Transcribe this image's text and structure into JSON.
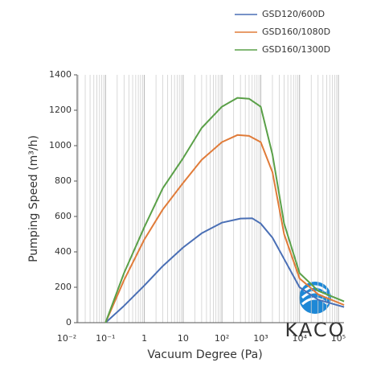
{
  "chart_data": {
    "type": "line",
    "xlabel": "Vacuum Degree (Pa)",
    "ylabel": "Pumping Speed (m³/h)",
    "log_x": true,
    "grid": true,
    "legend": "top-right",
    "xlim": [
      0.01,
      100000
    ],
    "ylim": [
      0,
      1400
    ],
    "xticks": [
      {
        "value": 0.01,
        "label": "10⁻²"
      },
      {
        "value": 0.1,
        "label": "10⁻¹"
      },
      1,
      10,
      {
        "value": 100,
        "label": "10²"
      },
      {
        "value": 1000,
        "label": "10³"
      },
      {
        "value": 10000,
        "label": "10⁴"
      },
      {
        "value": 100000,
        "label": "10⁵"
      }
    ],
    "yticks": [
      0,
      200,
      400,
      600,
      800,
      1000,
      1200,
      1400
    ],
    "series": [
      {
        "name": "GSD120/600D",
        "color": "#4a6fb5",
        "x": [
          0.1,
          0.3,
          1,
          3,
          10,
          30,
          100,
          300,
          600,
          1000,
          2000,
          4000,
          10000,
          30000,
          140000
        ],
        "values": [
          0,
          95,
          210,
          320,
          425,
          505,
          565,
          588,
          590,
          560,
          480,
          360,
          200,
          130,
          88
        ]
      },
      {
        "name": "GSD160/1080D",
        "color": "#e07b39",
        "x": [
          0.1,
          0.3,
          1,
          3,
          10,
          30,
          100,
          250,
          500,
          1000,
          2000,
          4000,
          10000,
          30000,
          140000
        ],
        "values": [
          0,
          240,
          470,
          640,
          790,
          920,
          1020,
          1060,
          1055,
          1020,
          850,
          500,
          250,
          160,
          100
        ]
      },
      {
        "name": "GSD160/1300D",
        "color": "#5aa048",
        "x": [
          0.1,
          0.3,
          1,
          3,
          10,
          30,
          100,
          250,
          500,
          1000,
          2000,
          4000,
          10000,
          30000,
          140000
        ],
        "values": [
          0,
          280,
          540,
          760,
          930,
          1100,
          1220,
          1270,
          1265,
          1220,
          950,
          560,
          280,
          180,
          120
        ]
      }
    ]
  },
  "logo": "KACO"
}
